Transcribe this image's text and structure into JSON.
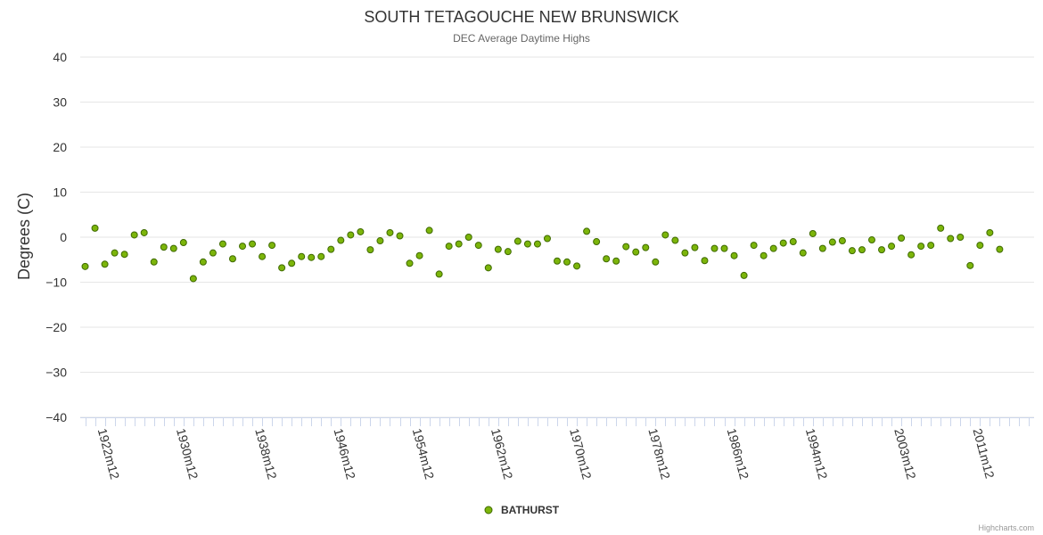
{
  "colors": {
    "series": "#7cb50a",
    "series_stroke": "#3f6a00"
  },
  "credits": "Highcharts.com",
  "chart_data": {
    "type": "scatter",
    "title": "SOUTH TETAGOUCHE NEW BRUNSWICK",
    "subtitle": "DEC Average Daytime Highs",
    "ylabel": "Degrees (C)",
    "xlabel": "",
    "ylim": [
      -40,
      40
    ],
    "yticks": [
      40,
      30,
      20,
      10,
      0,
      -10,
      -20,
      -30,
      -40
    ],
    "xtick_labels": [
      "1922m12",
      "1930m12",
      "1938m12",
      "1946m12",
      "1954m12",
      "1962m12",
      "1970m12",
      "1978m12",
      "1986m12",
      "1994m12",
      "2003m12",
      "2011m12"
    ],
    "x_start_year": 1920,
    "x_end_year": 2016,
    "grid": true,
    "legend_position": "bottom-center",
    "series": [
      {
        "name": "BATHURST",
        "points": [
          {
            "x": "1920m12",
            "y": -6.5
          },
          {
            "x": "1921m12",
            "y": 2.0
          },
          {
            "x": "1922m12",
            "y": -6.0
          },
          {
            "x": "1923m12",
            "y": -3.5
          },
          {
            "x": "1924m12",
            "y": -3.8
          },
          {
            "x": "1925m12",
            "y": 0.5
          },
          {
            "x": "1926m12",
            "y": 1.0
          },
          {
            "x": "1927m12",
            "y": -5.5
          },
          {
            "x": "1928m12",
            "y": -2.2
          },
          {
            "x": "1929m12",
            "y": -2.5
          },
          {
            "x": "1930m12",
            "y": -1.2
          },
          {
            "x": "1931m12",
            "y": -9.2
          },
          {
            "x": "1932m12",
            "y": -5.5
          },
          {
            "x": "1933m12",
            "y": -3.5
          },
          {
            "x": "1934m12",
            "y": -1.5
          },
          {
            "x": "1935m12",
            "y": -4.8
          },
          {
            "x": "1936m12",
            "y": -2.0
          },
          {
            "x": "1937m12",
            "y": -1.5
          },
          {
            "x": "1938m12",
            "y": -4.3
          },
          {
            "x": "1939m12",
            "y": -1.8
          },
          {
            "x": "1940m12",
            "y": -6.8
          },
          {
            "x": "1941m12",
            "y": -5.8
          },
          {
            "x": "1942m12",
            "y": -4.3
          },
          {
            "x": "1943m12",
            "y": -4.5
          },
          {
            "x": "1944m12",
            "y": -4.3
          },
          {
            "x": "1945m12",
            "y": -2.7
          },
          {
            "x": "1946m12",
            "y": -0.7
          },
          {
            "x": "1947m12",
            "y": 0.5
          },
          {
            "x": "1948m12",
            "y": 1.2
          },
          {
            "x": "1949m12",
            "y": -2.8
          },
          {
            "x": "1950m12",
            "y": -0.8
          },
          {
            "x": "1951m12",
            "y": 1.0
          },
          {
            "x": "1952m12",
            "y": 0.3
          },
          {
            "x": "1953m12",
            "y": -5.8
          },
          {
            "x": "1954m12",
            "y": -4.1
          },
          {
            "x": "1955m12",
            "y": 1.5
          },
          {
            "x": "1956m12",
            "y": -8.2
          },
          {
            "x": "1957m12",
            "y": -2.0
          },
          {
            "x": "1958m12",
            "y": -1.5
          },
          {
            "x": "1959m12",
            "y": 0.0
          },
          {
            "x": "1960m12",
            "y": -1.8
          },
          {
            "x": "1961m12",
            "y": -6.8
          },
          {
            "x": "1962m12",
            "y": -2.7
          },
          {
            "x": "1963m12",
            "y": -3.2
          },
          {
            "x": "1964m12",
            "y": -0.9
          },
          {
            "x": "1965m12",
            "y": -1.5
          },
          {
            "x": "1966m12",
            "y": -1.5
          },
          {
            "x": "1967m12",
            "y": -0.3
          },
          {
            "x": "1968m12",
            "y": -5.3
          },
          {
            "x": "1969m12",
            "y": -5.5
          },
          {
            "x": "1970m12",
            "y": -6.4
          },
          {
            "x": "1971m12",
            "y": 1.3
          },
          {
            "x": "1972m12",
            "y": -1.0
          },
          {
            "x": "1973m12",
            "y": -4.8
          },
          {
            "x": "1974m12",
            "y": -5.3
          },
          {
            "x": "1975m12",
            "y": -2.1
          },
          {
            "x": "1976m12",
            "y": -3.3
          },
          {
            "x": "1977m12",
            "y": -2.3
          },
          {
            "x": "1978m12",
            "y": -5.5
          },
          {
            "x": "1979m12",
            "y": 0.5
          },
          {
            "x": "1980m12",
            "y": -0.7
          },
          {
            "x": "1981m12",
            "y": -3.5
          },
          {
            "x": "1982m12",
            "y": -2.3
          },
          {
            "x": "1983m12",
            "y": -5.2
          },
          {
            "x": "1984m12",
            "y": -2.5
          },
          {
            "x": "1985m12",
            "y": -2.5
          },
          {
            "x": "1986m12",
            "y": -4.1
          },
          {
            "x": "1987m12",
            "y": -8.5
          },
          {
            "x": "1988m12",
            "y": -1.8
          },
          {
            "x": "1989m12",
            "y": -4.1
          },
          {
            "x": "1990m12",
            "y": -2.5
          },
          {
            "x": "1991m12",
            "y": -1.3
          },
          {
            "x": "1992m12",
            "y": -1.0
          },
          {
            "x": "1993m12",
            "y": -3.5
          },
          {
            "x": "1994m12",
            "y": 0.8
          },
          {
            "x": "1995m12",
            "y": -2.5
          },
          {
            "x": "1996m12",
            "y": -1.1
          },
          {
            "x": "1997m12",
            "y": -0.8
          },
          {
            "x": "1998m12",
            "y": -3.0
          },
          {
            "x": "1999m12",
            "y": -2.8
          },
          {
            "x": "2000m12",
            "y": -0.6
          },
          {
            "x": "2001m12",
            "y": -2.8
          },
          {
            "x": "2002m12",
            "y": -2.0
          },
          {
            "x": "2003m12",
            "y": -0.2
          },
          {
            "x": "2004m12",
            "y": -3.9
          },
          {
            "x": "2005m12",
            "y": -2.0
          },
          {
            "x": "2006m12",
            "y": -1.8
          },
          {
            "x": "2007m12",
            "y": 2.0
          },
          {
            "x": "2008m12",
            "y": -0.3
          },
          {
            "x": "2009m12",
            "y": 0.0
          },
          {
            "x": "2010m12",
            "y": -6.3
          },
          {
            "x": "2011m12",
            "y": -1.8
          },
          {
            "x": "2012m12",
            "y": 1.0
          },
          {
            "x": "2013m12",
            "y": -2.7
          }
        ]
      }
    ]
  }
}
